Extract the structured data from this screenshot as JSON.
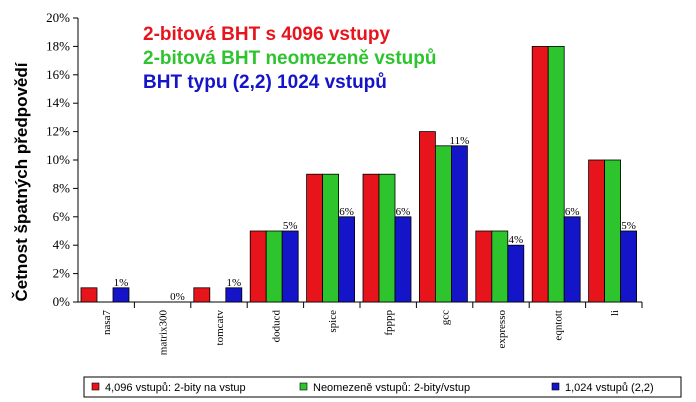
{
  "chart_data": {
    "type": "bar",
    "title_lines": [
      {
        "text": "2-bitová BHT s 4096 vstupy",
        "color": "#e8141c"
      },
      {
        "text": "2-bitová BHT neomezeně vstupů",
        "color": "#2ec42e"
      },
      {
        "text": "BHT typu (2,2) 1024 vstupů",
        "color": "#1414c8"
      }
    ],
    "ylabel": "Četnost špatných předpovědí",
    "xlabel": "",
    "ylim": [
      0,
      20
    ],
    "y_ticks": [
      "0%",
      "2%",
      "4%",
      "6%",
      "8%",
      "10%",
      "12%",
      "14%",
      "16%",
      "18%",
      "20%"
    ],
    "categories": [
      "nasa7",
      "matrix300",
      "tomcatv",
      "doducd",
      "spice",
      "fpppp",
      "gcc",
      "expresso",
      "eqntott",
      "li"
    ],
    "series": [
      {
        "name": "4,096 vstupů:  2-bity na vstup",
        "color": "#e8141c",
        "values": [
          1,
          0,
          1,
          5,
          9,
          9,
          12,
          5,
          18,
          10
        ]
      },
      {
        "name": "Neomezeně vstupů:  2-bity/vstup",
        "color": "#2ec42e",
        "values": [
          0,
          0,
          0,
          5,
          9,
          9,
          11,
          5,
          18,
          10
        ]
      },
      {
        "name": "1,024 vstupů (2,2)",
        "color": "#1414c8",
        "values": [
          1,
          0,
          1,
          5,
          6,
          6,
          11,
          4,
          6,
          5
        ]
      }
    ],
    "data_labels": [
      "1%",
      "0%",
      "1%",
      "5%",
      "6%",
      "6%",
      "11%",
      "4%",
      "6%",
      "5%"
    ],
    "grid": false,
    "legend_position": "bottom"
  }
}
